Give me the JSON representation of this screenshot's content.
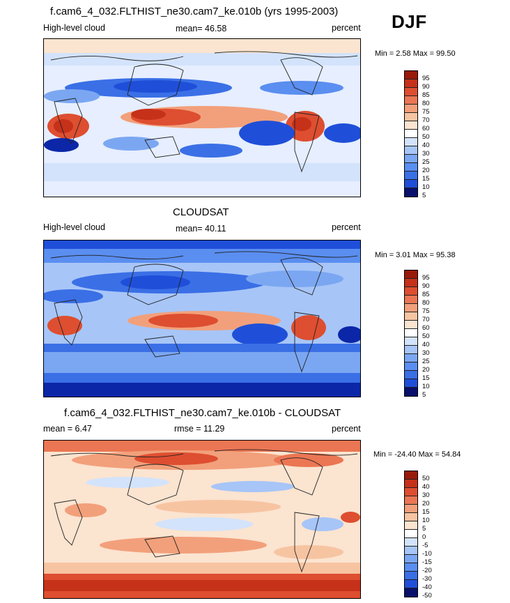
{
  "season_label": "DJF",
  "colors": {
    "abs_scale": [
      "#08106b",
      "#0b27a8",
      "#1f4fd9",
      "#3a6fe6",
      "#5a8ef0",
      "#7ba7f2",
      "#a7c5f7",
      "#d3e3fb",
      "#fbe4d0",
      "#f7c4a2",
      "#f2a07b",
      "#eb7653",
      "#de4e30",
      "#c6311a",
      "#9a1a0a"
    ],
    "diff_scale": [
      "#08106b",
      "#0b27a8",
      "#1f4fd9",
      "#3a6fe6",
      "#5a8ef0",
      "#7ba7f2",
      "#a7c5f7",
      "#d3e3fb",
      "#fbe4d0",
      "#f7c4a2",
      "#f2a07b",
      "#eb7653",
      "#de4e30",
      "#c6311a",
      "#9a1a0a"
    ]
  },
  "chart_data": [
    {
      "type": "heatmap",
      "title": "f.cam6_4_032.FLTHIST_ne30.cam7_ke.010b (yrs 1995-2003)",
      "left_label": "High-level cloud",
      "center_label": "mean=  46.58",
      "units": "percent",
      "min_max": "Min =   2.58 Max =  99.50",
      "colorbar_levels": [
        "5",
        "10",
        "15",
        "20",
        "25",
        "30",
        "40",
        "50",
        "60",
        "70",
        "75",
        "80",
        "85",
        "90",
        "95"
      ]
    },
    {
      "type": "heatmap",
      "title": "CLOUDSAT",
      "left_label": "High-level cloud",
      "center_label": "mean=  40.11",
      "units": "percent",
      "min_max": "Min =   3.01 Max =  95.38",
      "colorbar_levels": [
        "5",
        "10",
        "15",
        "20",
        "25",
        "30",
        "40",
        "50",
        "60",
        "70",
        "75",
        "80",
        "85",
        "90",
        "95"
      ]
    },
    {
      "type": "heatmap",
      "title": "f.cam6_4_032.FLTHIST_ne30.cam7_ke.010b - CLOUDSAT",
      "left_label": "mean =   6.47",
      "center_label": "rmse =  11.29",
      "units": "percent",
      "min_max": "Min = -24.40 Max =  54.84",
      "colorbar_levels": [
        "-50",
        "-40",
        "-30",
        "-20",
        "-15",
        "-10",
        "-5",
        "0",
        "5",
        "10",
        "15",
        "20",
        "30",
        "40",
        "50"
      ]
    }
  ]
}
